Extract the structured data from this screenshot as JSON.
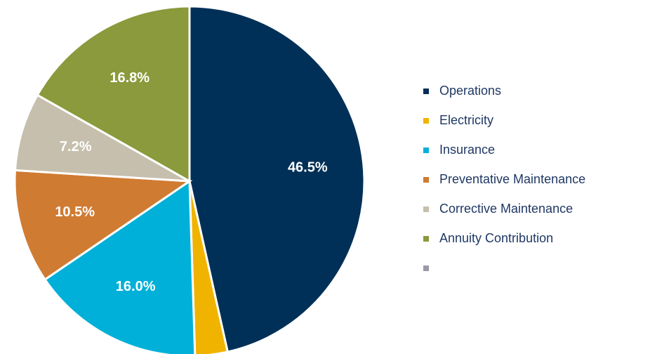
{
  "chart_data": {
    "type": "pie",
    "categories": [
      "Operations",
      "Electricity",
      "Insurance",
      "Preventative Maintenance",
      "Corrective Maintenance",
      "Annuity Contribution",
      null
    ],
    "values": [
      46.5,
      3.0,
      16.0,
      10.5,
      7.2,
      16.8,
      0
    ],
    "value_labels": [
      "46.5%",
      null,
      "16.0%",
      "10.5%",
      "7.2%",
      "16.8%",
      null
    ],
    "colors": [
      "#003057",
      "#f0b400",
      "#00b0d8",
      "#d07b32",
      "#c6bfad",
      "#8a9a3c",
      "#999aa5"
    ],
    "legend": "right"
  }
}
